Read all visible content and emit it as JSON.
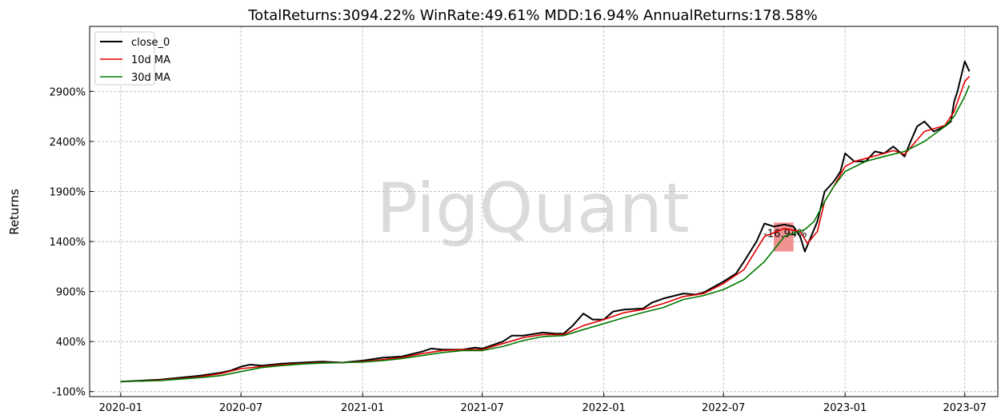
{
  "chart_data": {
    "type": "line",
    "title": "TotalReturns:3094.22%  WinRate:49.61%  MDD:16.94%  AnnualReturns:178.58%",
    "xlabel": "",
    "ylabel": "Returns",
    "watermark": "PigQuant",
    "grid": true,
    "legend_position": "top-left",
    "x_ticks": [
      "2020-01",
      "2020-07",
      "2021-01",
      "2021-07",
      "2022-01",
      "2022-07",
      "2023-01",
      "2023-07"
    ],
    "y_ticks": [
      -100,
      400,
      900,
      1400,
      1900,
      2400,
      2900
    ],
    "y_tick_labels": [
      "-100%",
      "400%",
      "900%",
      "1400%",
      "1900%",
      "2400%",
      "2900%"
    ],
    "xlim": [
      "2019-11-15",
      "2023-08-20"
    ],
    "ylim": [
      -150,
      3550
    ],
    "colors": {
      "close_0": "#000000",
      "ma10": "#e00000",
      "ma30": "#007a00",
      "mdd_fill": "#f08080"
    },
    "series": [
      {
        "name": "close_0",
        "x": [
          "2020-01-01",
          "2020-02-01",
          "2020-03-01",
          "2020-04-01",
          "2020-05-01",
          "2020-06-01",
          "2020-06-15",
          "2020-07-01",
          "2020-07-15",
          "2020-08-01",
          "2020-09-01",
          "2020-10-01",
          "2020-11-01",
          "2020-12-01",
          "2021-01-01",
          "2021-02-01",
          "2021-03-01",
          "2021-04-01",
          "2021-04-15",
          "2021-05-01",
          "2021-06-01",
          "2021-06-20",
          "2021-07-01",
          "2021-08-01",
          "2021-08-15",
          "2021-09-01",
          "2021-10-01",
          "2021-10-20",
          "2021-11-01",
          "2021-11-15",
          "2021-12-01",
          "2021-12-15",
          "2022-01-01",
          "2022-01-15",
          "2022-02-01",
          "2022-03-01",
          "2022-03-15",
          "2022-04-01",
          "2022-05-01",
          "2022-05-20",
          "2022-06-01",
          "2022-06-20",
          "2022-07-01",
          "2022-07-20",
          "2022-08-01",
          "2022-08-20",
          "2022-09-01",
          "2022-09-15",
          "2022-10-01",
          "2022-10-15",
          "2022-10-25",
          "2022-11-01",
          "2022-11-20",
          "2022-12-01",
          "2022-12-15",
          "2022-12-25",
          "2023-01-01",
          "2023-01-15",
          "2023-02-01",
          "2023-02-15",
          "2023-03-01",
          "2023-03-15",
          "2023-04-01",
          "2023-04-10",
          "2023-04-20",
          "2023-05-01",
          "2023-05-15",
          "2023-06-01",
          "2023-06-10",
          "2023-06-15",
          "2023-06-20",
          "2023-07-01",
          "2023-07-08"
        ],
        "values": [
          0,
          10,
          20,
          40,
          60,
          90,
          110,
          150,
          170,
          160,
          180,
          190,
          200,
          190,
          210,
          240,
          250,
          300,
          330,
          320,
          320,
          340,
          330,
          400,
          460,
          460,
          490,
          480,
          480,
          560,
          680,
          620,
          620,
          700,
          720,
          730,
          790,
          830,
          880,
          870,
          890,
          960,
          1000,
          1080,
          1200,
          1400,
          1580,
          1550,
          1570,
          1550,
          1450,
          1300,
          1600,
          1900,
          2000,
          2100,
          2280,
          2200,
          2200,
          2300,
          2280,
          2350,
          2250,
          2400,
          2550,
          2600,
          2500,
          2550,
          2600,
          2800,
          2900,
          3200,
          3100
        ]
      },
      {
        "name": "10d MA",
        "x": [
          "2020-01-01",
          "2020-02-01",
          "2020-03-01",
          "2020-04-01",
          "2020-05-01",
          "2020-06-01",
          "2020-07-01",
          "2020-08-01",
          "2020-09-01",
          "2020-10-01",
          "2020-11-01",
          "2020-12-01",
          "2021-01-01",
          "2021-02-01",
          "2021-03-01",
          "2021-04-01",
          "2021-05-01",
          "2021-06-01",
          "2021-07-01",
          "2021-08-01",
          "2021-09-01",
          "2021-10-01",
          "2021-11-01",
          "2021-12-01",
          "2022-01-01",
          "2022-02-01",
          "2022-03-01",
          "2022-04-01",
          "2022-05-01",
          "2022-06-01",
          "2022-07-01",
          "2022-08-01",
          "2022-09-01",
          "2022-10-01",
          "2022-10-25",
          "2022-11-05",
          "2022-11-20",
          "2022-12-01",
          "2022-12-15",
          "2023-01-01",
          "2023-01-15",
          "2023-02-01",
          "2023-03-01",
          "2023-03-15",
          "2023-04-01",
          "2023-05-01",
          "2023-06-01",
          "2023-06-15",
          "2023-07-01",
          "2023-07-08"
        ],
        "values": [
          0,
          5,
          15,
          30,
          50,
          80,
          130,
          150,
          170,
          180,
          190,
          190,
          200,
          220,
          240,
          280,
          310,
          320,
          320,
          380,
          440,
          470,
          470,
          560,
          620,
          690,
          720,
          780,
          850,
          880,
          980,
          1120,
          1450,
          1530,
          1500,
          1380,
          1500,
          1800,
          1950,
          2150,
          2200,
          2230,
          2280,
          2310,
          2270,
          2500,
          2560,
          2700,
          3000,
          3050
        ]
      },
      {
        "name": "30d MA",
        "x": [
          "2020-01-01",
          "2020-02-01",
          "2020-03-01",
          "2020-04-01",
          "2020-05-01",
          "2020-06-01",
          "2020-07-01",
          "2020-08-01",
          "2020-09-01",
          "2020-10-01",
          "2020-11-01",
          "2020-12-01",
          "2021-01-01",
          "2021-02-01",
          "2021-03-01",
          "2021-04-01",
          "2021-05-01",
          "2021-06-01",
          "2021-07-01",
          "2021-08-01",
          "2021-09-01",
          "2021-10-01",
          "2021-11-01",
          "2021-12-01",
          "2022-01-01",
          "2022-02-01",
          "2022-03-01",
          "2022-04-01",
          "2022-05-01",
          "2022-06-01",
          "2022-07-01",
          "2022-08-01",
          "2022-09-01",
          "2022-10-01",
          "2022-11-01",
          "2022-11-15",
          "2022-12-01",
          "2022-12-15",
          "2023-01-01",
          "2023-02-01",
          "2023-03-01",
          "2023-04-01",
          "2023-05-01",
          "2023-06-01",
          "2023-06-15",
          "2023-07-01",
          "2023-07-08"
        ],
        "values": [
          0,
          5,
          10,
          25,
          40,
          60,
          100,
          140,
          160,
          175,
          185,
          190,
          195,
          210,
          230,
          260,
          290,
          310,
          310,
          350,
          410,
          450,
          460,
          520,
          580,
          640,
          690,
          740,
          820,
          860,
          920,
          1020,
          1200,
          1450,
          1520,
          1600,
          1800,
          1950,
          2100,
          2200,
          2250,
          2300,
          2400,
          2550,
          2650,
          2850,
          2960
        ]
      }
    ],
    "drawdown": {
      "label": "-16.94%",
      "x_start": "2022-09-15",
      "x_end": "2022-10-15",
      "y_top": 1590,
      "y_bottom": 1300
    }
  }
}
